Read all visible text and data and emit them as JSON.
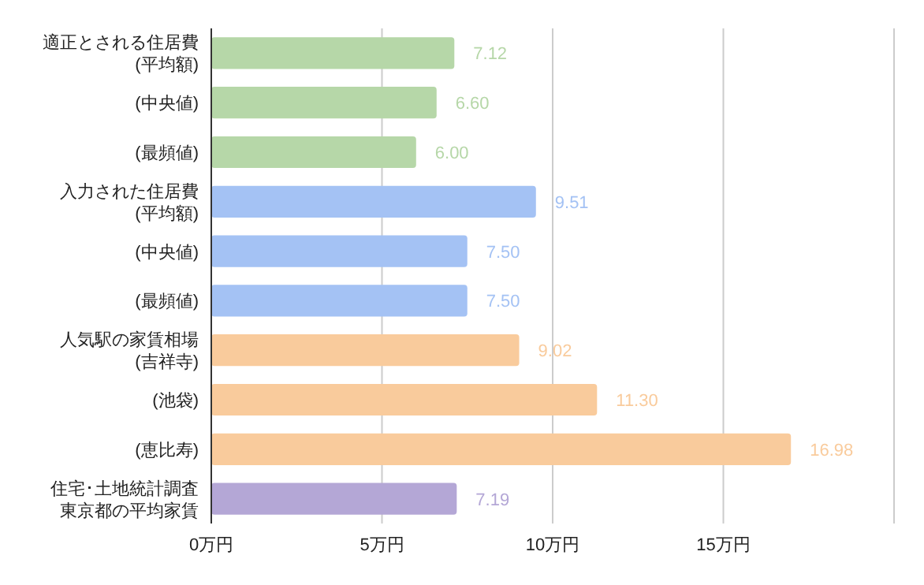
{
  "chart_data": {
    "type": "bar",
    "orientation": "horizontal",
    "categories": [
      "適正とされる住居費(平均額)",
      "(中央値)",
      "(最頻値)",
      "入力された住居費(平均額)",
      "(中央値)",
      "(最頻値)",
      "人気駅の家賃相場(吉祥寺)",
      "(池袋)",
      "(恵比寿)",
      "住宅･土地統計調査東京都の平均家賃"
    ],
    "values": [
      7.12,
      6.6,
      6.0,
      9.51,
      7.5,
      7.5,
      9.02,
      11.3,
      16.98,
      7.19
    ],
    "colors": [
      "#b6d7a8",
      "#b6d7a8",
      "#b6d7a8",
      "#a4c2f4",
      "#a4c2f4",
      "#a4c2f4",
      "#f9cb9c",
      "#f9cb9c",
      "#f9cb9c",
      "#b4a7d6"
    ],
    "value_labels": [
      "7.12",
      "6.60",
      "6.00",
      "9.51",
      "7.50",
      "7.50",
      "9.02",
      "11.30",
      "16.98",
      "7.19"
    ],
    "xlim": [
      0,
      20
    ],
    "xticks": [
      {
        "value": 0,
        "label": "0万円"
      },
      {
        "value": 5,
        "label": "5万円"
      },
      {
        "value": 10,
        "label": "10万円"
      },
      {
        "value": 15,
        "label": "15万円"
      },
      {
        "value": 20,
        "label": null
      }
    ],
    "grid": "x"
  }
}
